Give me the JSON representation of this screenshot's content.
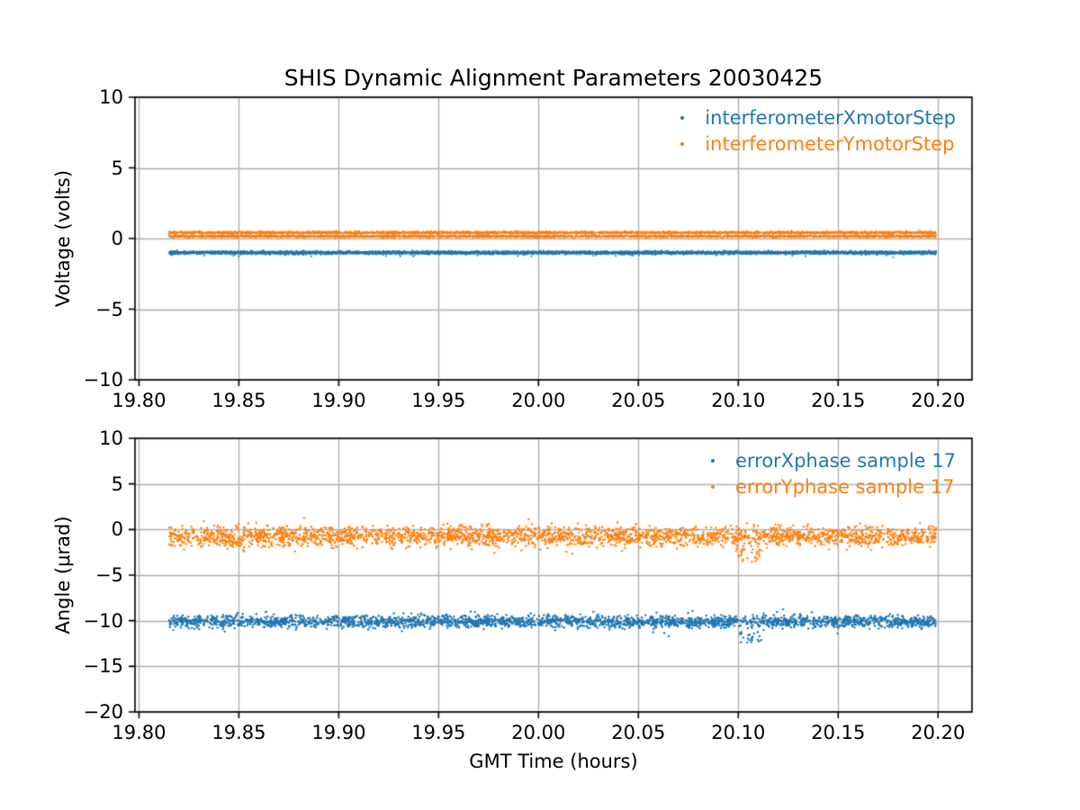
{
  "figure": {
    "background": "#ffffff",
    "grid_color": "#b0b0b0",
    "spine_color": "#000000"
  },
  "chart_data": [
    {
      "type": "scatter",
      "title": "SHIS Dynamic Alignment Parameters 20030425",
      "xlabel": "",
      "ylabel": "Voltage (volts)",
      "xlim": [
        19.798,
        20.217
      ],
      "ylim": [
        -10,
        10
      ],
      "xticks": [
        19.8,
        19.85,
        19.9,
        19.95,
        20.0,
        20.05,
        20.1,
        20.15,
        20.2
      ],
      "xtick_labels": [
        "19.80",
        "19.85",
        "19.90",
        "19.95",
        "20.00",
        "20.05",
        "20.10",
        "20.15",
        "20.20"
      ],
      "yticks": [
        10,
        5,
        0,
        -5,
        -10
      ],
      "ytick_labels": [
        "10",
        "5",
        "0",
        "−5",
        "−10"
      ],
      "grid": true,
      "legend_position": "upper right",
      "legend_frame": false,
      "series": [
        {
          "name": "interferometerXmotorStep",
          "color": "#1f77b4",
          "x_start": 19.815,
          "x_end": 20.199,
          "pattern": "constant-band",
          "mean": -1.0,
          "spread": 0.05,
          "points": 6000,
          "marker_px": 1.7
        },
        {
          "name": "interferometerYmotorStep",
          "color": "#ff7f0e",
          "x_start": 19.815,
          "x_end": 20.199,
          "pattern": "two-level-band",
          "levels": [
            0.42,
            0.16
          ],
          "spread": 0.04,
          "points": 6000,
          "marker_px": 1.7
        }
      ]
    },
    {
      "type": "scatter",
      "title": "",
      "xlabel": "GMT Time (hours)",
      "ylabel": "Angle (μrad)",
      "xlim": [
        19.798,
        20.217
      ],
      "ylim": [
        -20,
        10
      ],
      "xticks": [
        19.8,
        19.85,
        19.9,
        19.95,
        20.0,
        20.05,
        20.1,
        20.15,
        20.2
      ],
      "xtick_labels": [
        "19.80",
        "19.85",
        "19.90",
        "19.95",
        "20.00",
        "20.05",
        "20.10",
        "20.15",
        "20.20"
      ],
      "yticks": [
        10,
        5,
        0,
        -5,
        -10,
        -15,
        -20
      ],
      "ytick_labels": [
        "10",
        "5",
        "0",
        "−5",
        "−10",
        "−15",
        "−20"
      ],
      "grid": true,
      "legend_position": "upper right",
      "legend_frame": false,
      "series": [
        {
          "name": "errorXphase sample 17",
          "color": "#1f77b4",
          "x_start": 19.815,
          "x_end": 20.199,
          "pattern": "noisy-band",
          "mean": -10.1,
          "spread": 0.33,
          "outlier_x": 20.106,
          "outlier_min": -12.4,
          "points": 2700,
          "marker_px": 2.4
        },
        {
          "name": "errorYphase sample 17",
          "color": "#ff7f0e",
          "x_start": 19.815,
          "x_end": 20.199,
          "pattern": "noisy-band",
          "mean": -0.75,
          "spread": 0.55,
          "outlier_x": 20.106,
          "outlier_min": -3.6,
          "points": 2700,
          "marker_px": 2.4
        }
      ]
    }
  ]
}
